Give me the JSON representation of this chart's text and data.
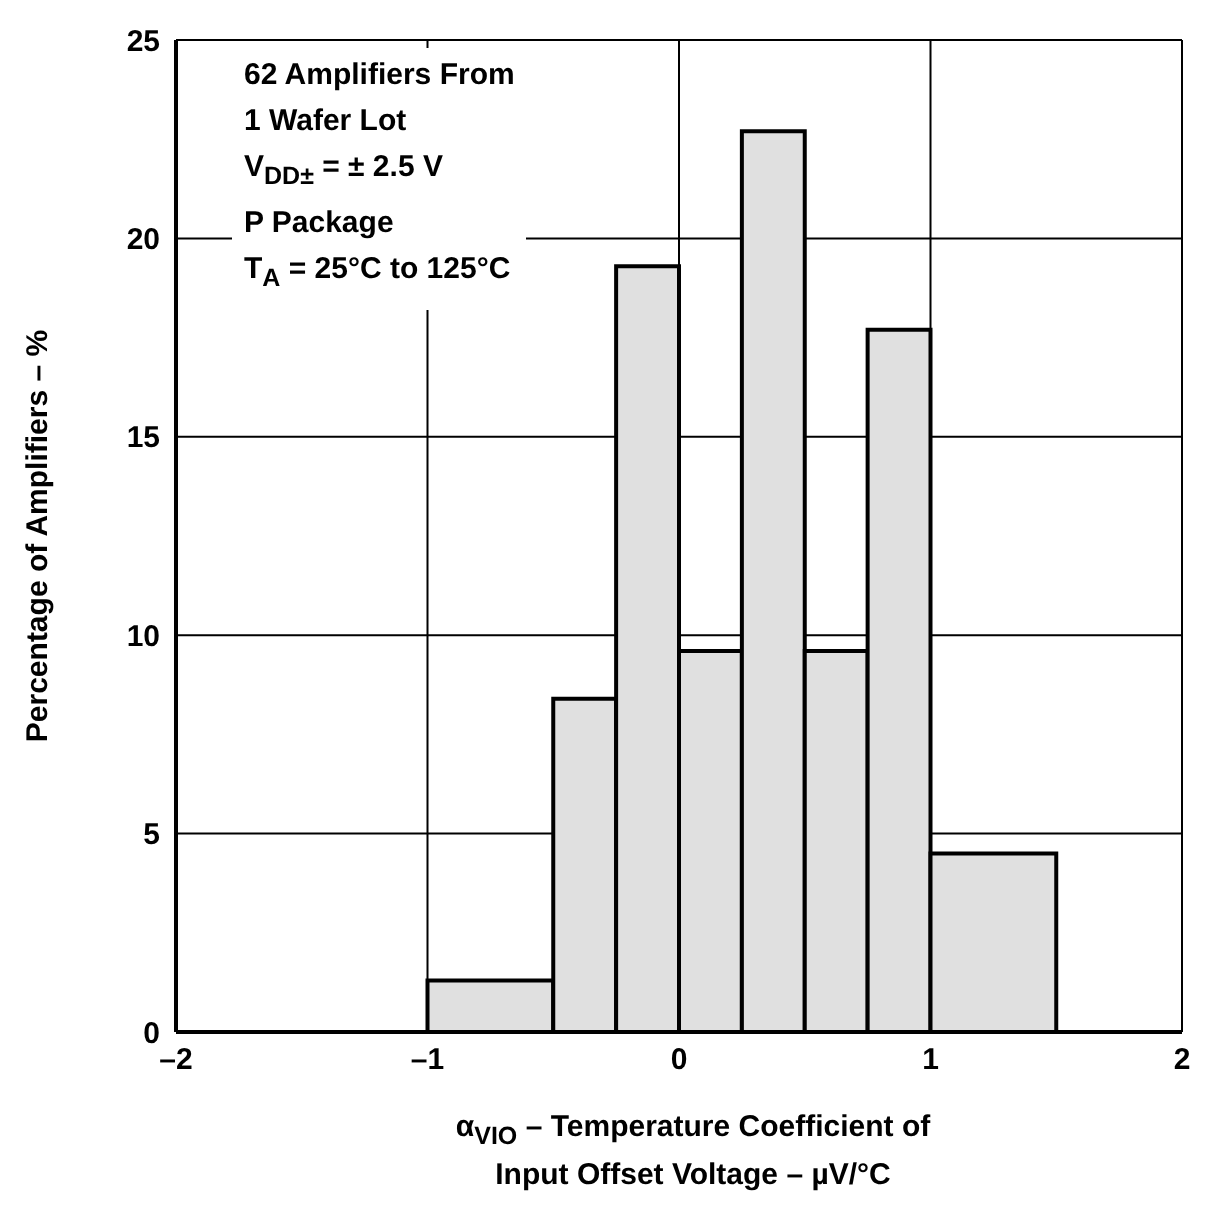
{
  "chart_data": {
    "type": "histogram",
    "bins": [
      -1,
      -0.5,
      -0.25,
      0,
      0.25,
      0.5,
      0.75,
      1,
      1.5
    ],
    "values": [
      1.3,
      8.4,
      19.3,
      9.6,
      22.7,
      9.6,
      17.7,
      4.5
    ],
    "color": "#e0e0e0",
    "xlim": [
      -2,
      2
    ],
    "xticks": [
      {
        "value": -2,
        "label": "–2"
      },
      {
        "value": -1,
        "label": "–1"
      },
      0,
      1,
      2
    ],
    "ylim": [
      0,
      25
    ],
    "yticks": [
      0,
      5,
      10,
      15,
      20,
      25
    ],
    "grid": true,
    "xlabel": "α$_{VIO}$ – Temperature Coefficient of\nInput Offset Voltage – µV/°C",
    "ylabel": "Percentage of Amplifiers – %",
    "annotations": [
      "62 Amplifiers From\n1 Wafer Lot\nV$_{DD±}$ = ± 2.5 V\nP Package\nT$_{A}$ = 25°C to 125°C"
    ]
  }
}
